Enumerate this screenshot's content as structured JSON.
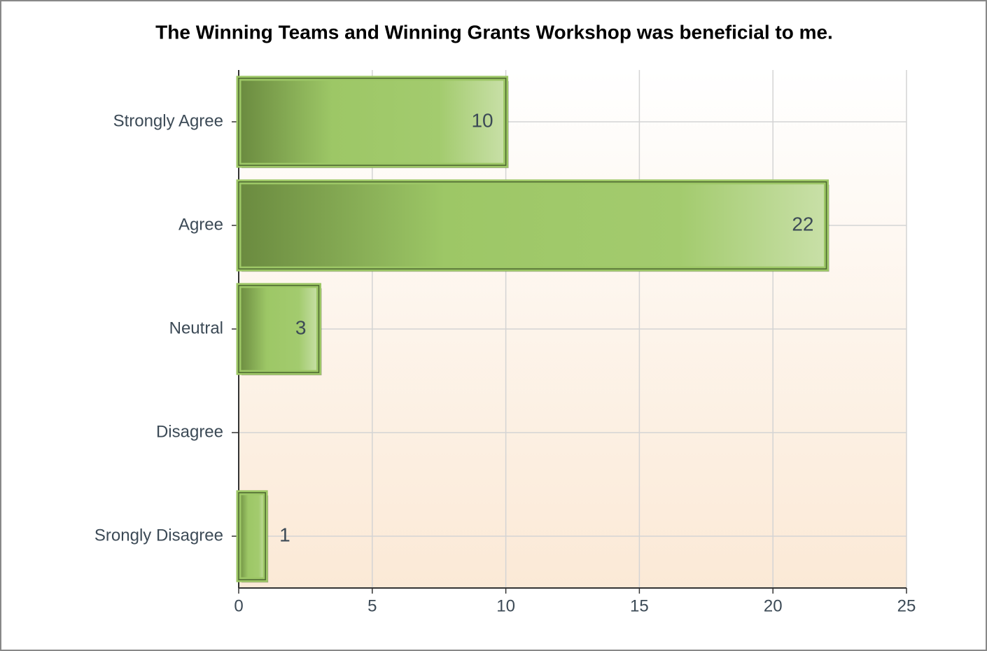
{
  "chart_data": {
    "type": "bar",
    "orientation": "horizontal",
    "title": "The Winning Teams and Winning Grants Workshop was beneficial to me.",
    "categories": [
      "Strongly Agree",
      "Agree",
      "Neutral",
      "Disagree",
      "Srongly Disagree"
    ],
    "values": [
      10,
      22,
      3,
      0,
      1
    ],
    "color": "#9dc766",
    "xlim": [
      0,
      25
    ],
    "xticks": [
      0,
      5,
      10,
      15,
      20,
      25
    ],
    "grid": true
  }
}
